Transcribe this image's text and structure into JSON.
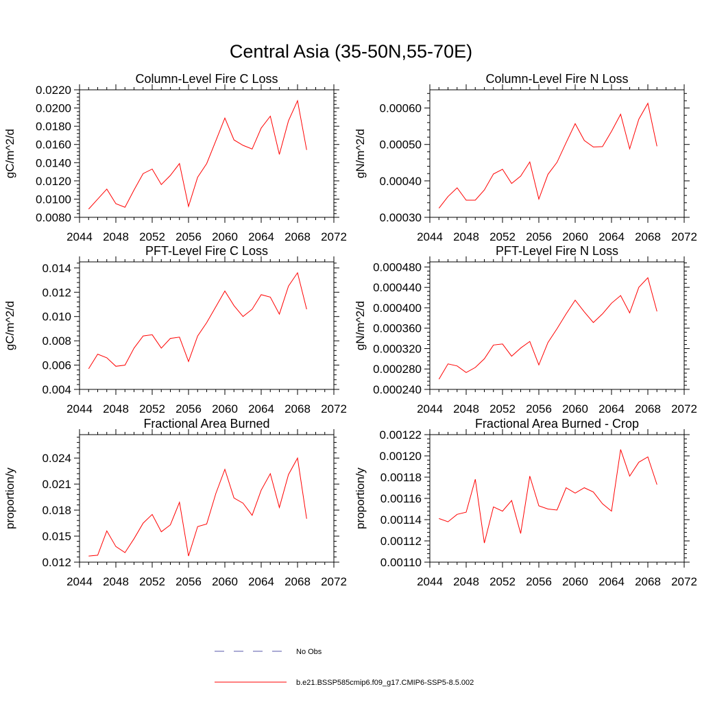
{
  "figure": {
    "title": "Central Asia (35-50N,55-70E)"
  },
  "colors": {
    "model": "#ff0000",
    "obs": "#5555aa"
  },
  "legend": {
    "items": [
      {
        "label": "No Obs",
        "style": "dashed",
        "color": "#5555aa"
      },
      {
        "label": "b.e21.BSSP585cmip6.f09_g17.CMIP6-SSP5-8.5.002",
        "style": "solid",
        "color": "#ff0000"
      }
    ]
  },
  "chart_data": [
    {
      "type": "line",
      "title": "Column-Level Fire C Loss",
      "ylabel": "gC/m^2/d",
      "xlim": [
        2044,
        2072
      ],
      "xticks": [
        2044,
        2048,
        2052,
        2056,
        2060,
        2064,
        2068,
        2072
      ],
      "ylim": [
        0.008,
        0.022
      ],
      "yticks": [
        "0.0080",
        "0.0100",
        "0.0120",
        "0.0140",
        "0.0160",
        "0.0180",
        "0.0200",
        "0.0220"
      ],
      "x": [
        2045,
        2046,
        2047,
        2048,
        2049,
        2050,
        2051,
        2052,
        2053,
        2054,
        2055,
        2056,
        2057,
        2058,
        2059,
        2060,
        2061,
        2062,
        2063,
        2064,
        2065,
        2066,
        2067,
        2068,
        2069
      ],
      "series": [
        {
          "values": [
            0.0089,
            0.01,
            0.0111,
            0.0095,
            0.0091,
            0.011,
            0.0128,
            0.0133,
            0.0116,
            0.0126,
            0.0139,
            0.0092,
            0.0124,
            0.0139,
            0.0164,
            0.0189,
            0.0165,
            0.0159,
            0.0155,
            0.0178,
            0.0191,
            0.0149,
            0.0186,
            0.0208,
            0.0154
          ]
        }
      ]
    },
    {
      "type": "line",
      "title": "Column-Level Fire N Loss",
      "ylabel": "gN/m^2/d",
      "xlim": [
        2044,
        2072
      ],
      "xticks": [
        2044,
        2048,
        2052,
        2056,
        2060,
        2064,
        2068,
        2072
      ],
      "ylim": [
        0.0003,
        0.00065
      ],
      "yticks": [
        "0.00030",
        "0.00040",
        "0.00050",
        "0.00060"
      ],
      "x": [
        2045,
        2046,
        2047,
        2048,
        2049,
        2050,
        2051,
        2052,
        2053,
        2054,
        2055,
        2056,
        2057,
        2058,
        2059,
        2060,
        2061,
        2062,
        2063,
        2064,
        2065,
        2066,
        2067,
        2068,
        2069
      ],
      "series": [
        {
          "values": [
            0.000325,
            0.000357,
            0.000381,
            0.000347,
            0.000347,
            0.000375,
            0.000419,
            0.000432,
            0.000393,
            0.000413,
            0.000452,
            0.00035,
            0.000418,
            0.000451,
            0.000505,
            0.000557,
            0.000511,
            0.000493,
            0.000494,
            0.000536,
            0.000583,
            0.000488,
            0.000569,
            0.000613,
            0.000495
          ]
        }
      ]
    },
    {
      "type": "line",
      "title": "PFT-Level Fire C Loss",
      "ylabel": "gC/m^2/d",
      "xlim": [
        2044,
        2072
      ],
      "xticks": [
        2044,
        2048,
        2052,
        2056,
        2060,
        2064,
        2068,
        2072
      ],
      "ylim": [
        0.004,
        0.0145
      ],
      "yticks": [
        "0.004",
        "0.006",
        "0.008",
        "0.010",
        "0.012",
        "0.014"
      ],
      "x": [
        2045,
        2046,
        2047,
        2048,
        2049,
        2050,
        2051,
        2052,
        2053,
        2054,
        2055,
        2056,
        2057,
        2058,
        2059,
        2060,
        2061,
        2062,
        2063,
        2064,
        2065,
        2066,
        2067,
        2068,
        2069
      ],
      "series": [
        {
          "values": [
            0.0057,
            0.0069,
            0.0066,
            0.0059,
            0.006,
            0.0074,
            0.0084,
            0.0085,
            0.0074,
            0.0082,
            0.0083,
            0.0063,
            0.0084,
            0.0095,
            0.0108,
            0.0121,
            0.0109,
            0.01,
            0.0106,
            0.0118,
            0.0116,
            0.0102,
            0.0125,
            0.0136,
            0.0106
          ]
        }
      ]
    },
    {
      "type": "line",
      "title": "PFT-Level Fire N Loss",
      "ylabel": "gN/m^2/d",
      "xlim": [
        2044,
        2072
      ],
      "xticks": [
        2044,
        2048,
        2052,
        2056,
        2060,
        2064,
        2068,
        2072
      ],
      "ylim": [
        0.00024,
        0.00049
      ],
      "yticks": [
        "0.000240",
        "0.000280",
        "0.000320",
        "0.000360",
        "0.000400",
        "0.000440",
        "0.000480"
      ],
      "x": [
        2045,
        2046,
        2047,
        2048,
        2049,
        2050,
        2051,
        2052,
        2053,
        2054,
        2055,
        2056,
        2057,
        2058,
        2059,
        2060,
        2061,
        2062,
        2063,
        2064,
        2065,
        2066,
        2067,
        2068,
        2069
      ],
      "series": [
        {
          "values": [
            0.00026,
            0.00029,
            0.000286,
            0.000273,
            0.000283,
            0.0003,
            0.000327,
            0.000329,
            0.000305,
            0.000321,
            0.000334,
            0.000288,
            0.000332,
            0.000359,
            0.000388,
            0.000415,
            0.000392,
            0.000371,
            0.000388,
            0.000409,
            0.000424,
            0.00039,
            0.00044,
            0.000459,
            0.000393
          ]
        }
      ]
    },
    {
      "type": "line",
      "title": "Fractional Area Burned",
      "ylabel": "proportion/y",
      "xlim": [
        2044,
        2072
      ],
      "xticks": [
        2044,
        2048,
        2052,
        2056,
        2060,
        2064,
        2068,
        2072
      ],
      "ylim": [
        0.012,
        0.0267
      ],
      "yticks": [
        "0.012",
        "0.015",
        "0.018",
        "0.021",
        "0.024"
      ],
      "x": [
        2045,
        2046,
        2047,
        2048,
        2049,
        2050,
        2051,
        2052,
        2053,
        2054,
        2055,
        2056,
        2057,
        2058,
        2059,
        2060,
        2061,
        2062,
        2063,
        2064,
        2065,
        2066,
        2067,
        2068,
        2069
      ],
      "series": [
        {
          "values": [
            0.0127,
            0.0128,
            0.0156,
            0.0138,
            0.0131,
            0.0147,
            0.0165,
            0.0175,
            0.0155,
            0.0163,
            0.0189,
            0.0127,
            0.0161,
            0.0164,
            0.0199,
            0.0227,
            0.0194,
            0.0188,
            0.0174,
            0.0203,
            0.0222,
            0.0183,
            0.0221,
            0.024,
            0.017
          ]
        }
      ]
    },
    {
      "type": "line",
      "title": "Fractional Area Burned - Crop",
      "ylabel": "proportion/y",
      "xlim": [
        2044,
        2072
      ],
      "xticks": [
        2044,
        2048,
        2052,
        2056,
        2060,
        2064,
        2068,
        2072
      ],
      "ylim": [
        0.0011,
        0.00122
      ],
      "yticks": [
        "0.00110",
        "0.00112",
        "0.00114",
        "0.00116",
        "0.00118",
        "0.00120",
        "0.00122"
      ],
      "x": [
        2045,
        2046,
        2047,
        2048,
        2049,
        2050,
        2051,
        2052,
        2053,
        2054,
        2055,
        2056,
        2057,
        2058,
        2059,
        2060,
        2061,
        2062,
        2063,
        2064,
        2065,
        2066,
        2067,
        2068,
        2069
      ],
      "series": [
        {
          "values": [
            0.001141,
            0.001138,
            0.001145,
            0.001147,
            0.001178,
            0.001118,
            0.001152,
            0.001148,
            0.001158,
            0.001127,
            0.001181,
            0.001153,
            0.00115,
            0.001149,
            0.00117,
            0.001165,
            0.00117,
            0.001166,
            0.001155,
            0.001148,
            0.001206,
            0.001181,
            0.001194,
            0.001199,
            0.001173
          ]
        }
      ]
    }
  ]
}
